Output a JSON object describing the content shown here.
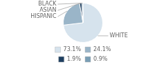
{
  "chart_data": {
    "type": "pie",
    "categories": [
      "WHITE",
      "HISPANIC",
      "ASIAN",
      "BLACK"
    ],
    "values": [
      73.1,
      24.1,
      1.9,
      0.9
    ],
    "value_labels": [
      "73.1%",
      "24.1%",
      "1.9%",
      "0.9%"
    ],
    "colors": [
      "#d6e3ed",
      "#9ab5c8",
      "#1e3f60",
      "#7a9eb5"
    ],
    "legend": "bottom"
  }
}
